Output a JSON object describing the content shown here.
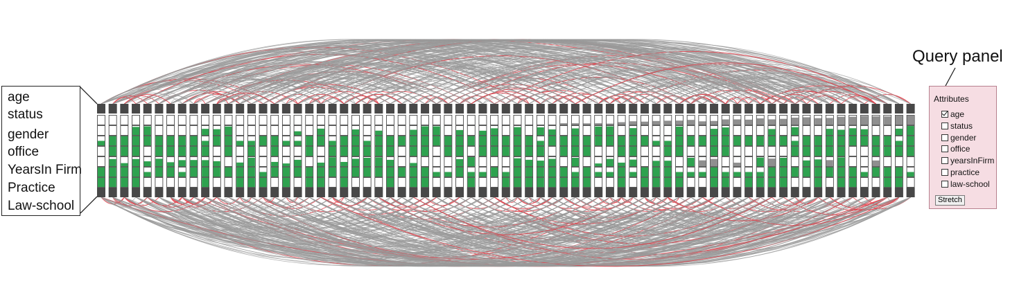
{
  "legend": {
    "labels": [
      "age",
      "status",
      "gender",
      "office",
      "YearsIn Firm",
      "Practice",
      "Law-school"
    ]
  },
  "query_panel": {
    "title": "Query panel",
    "heading": "Attributes",
    "attributes": [
      {
        "label": "age",
        "checked": true
      },
      {
        "label": "status",
        "checked": false
      },
      {
        "label": "gender",
        "checked": false
      },
      {
        "label": "office",
        "checked": false
      },
      {
        "label": "yearsInFirm",
        "checked": false
      },
      {
        "label": "practice",
        "checked": false
      },
      {
        "label": "law-school",
        "checked": false
      }
    ],
    "stretch_label": "Stretch"
  },
  "colors": {
    "node_header": "#484848",
    "attribute_fill": "#2ea24f",
    "attribute_partial": "#8f8f8f",
    "edge_default": "#9a9a9a",
    "edge_highlight": "#e0404a",
    "panel_bg": "#f6dde3"
  },
  "network": {
    "node_count": 71,
    "attribute_rows": 7
  }
}
